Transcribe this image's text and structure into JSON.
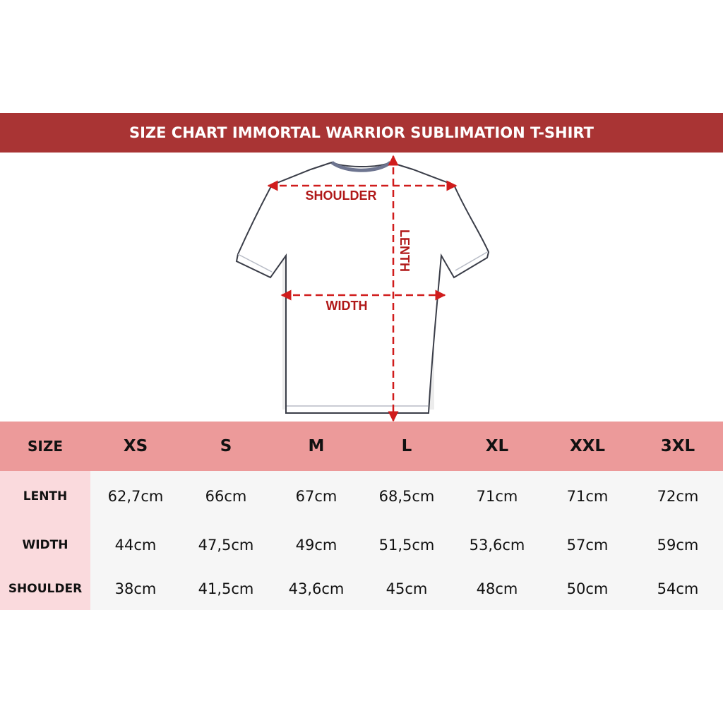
{
  "title": "SIZE CHART IMMORTAL WARRIOR SUBLIMATION T-SHIRT",
  "colors": {
    "title_bar": "#a93434",
    "header_row": "#ec9a9a",
    "label_column": "#fadadd",
    "measure_lines": "#d01c1c"
  },
  "diagram": {
    "shoulder_label": "SHOULDER",
    "length_label": "LENTH",
    "width_label": "WIDTH"
  },
  "table": {
    "header": [
      "SIZE",
      "XS",
      "S",
      "M",
      "L",
      "XL",
      "XXL",
      "3XL"
    ],
    "rows": [
      {
        "label": "LENTH",
        "values": [
          "62,7cm",
          "66cm",
          "67cm",
          "68,5cm",
          "71cm",
          "71cm",
          "72cm"
        ]
      },
      {
        "label": "WIDTH",
        "values": [
          "44cm",
          "47,5cm",
          "49cm",
          "51,5cm",
          "53,6cm",
          "57cm",
          "59cm"
        ]
      },
      {
        "label": "SHOULDER",
        "values": [
          "38cm",
          "41,5cm",
          "43,6cm",
          "45cm",
          "48cm",
          "50cm",
          "54cm"
        ]
      }
    ]
  }
}
